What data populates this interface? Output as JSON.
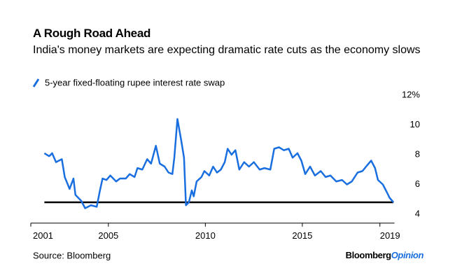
{
  "chart_data": {
    "type": "line",
    "title": "A Rough Road Ahead",
    "subtitle": "India's money markets are expecting dramatic rate cuts as the economy slows",
    "source": "Source: Bloomberg",
    "brand": "Bloomberg",
    "brand_suffix": "Opinion",
    "x": [
      2001.7,
      2001.95,
      2002.1,
      2002.3,
      2002.6,
      2002.75,
      2003.0,
      2003.2,
      2003.3,
      2003.6,
      2003.8,
      2004.1,
      2004.4,
      2004.55,
      2004.7,
      2004.9,
      2005.1,
      2005.4,
      2005.6,
      2005.9,
      2006.1,
      2006.35,
      2006.5,
      2006.75,
      2007.0,
      2007.2,
      2007.45,
      2007.65,
      2007.9,
      2008.1,
      2008.3,
      2008.4,
      2008.56,
      2008.75,
      2008.9,
      2009.0,
      2009.15,
      2009.3,
      2009.4,
      2009.55,
      2009.8,
      2009.95,
      2010.2,
      2010.4,
      2010.6,
      2010.8,
      2011.0,
      2011.15,
      2011.35,
      2011.55,
      2011.75,
      2012.0,
      2012.25,
      2012.5,
      2012.8,
      2013.05,
      2013.35,
      2013.55,
      2013.8,
      2014.05,
      2014.3,
      2014.5,
      2014.75,
      2014.95,
      2015.15,
      2015.4,
      2015.65,
      2015.95,
      2016.2,
      2016.45,
      2016.75,
      2017.05,
      2017.3,
      2017.55,
      2017.85,
      2018.1,
      2018.35,
      2018.55,
      2018.75,
      2018.9,
      2019.15,
      2019.35,
      2019.5,
      2019.7
    ],
    "series": [
      {
        "name": "5-year fixed-floating rupee interest rate swap",
        "color": "#1a6fe0",
        "values": [
          8.1,
          7.9,
          8.1,
          7.5,
          7.7,
          6.5,
          5.7,
          6.4,
          5.3,
          4.9,
          4.4,
          4.6,
          4.5,
          5.5,
          6.4,
          6.3,
          6.6,
          6.2,
          6.4,
          6.4,
          6.7,
          6.5,
          7.1,
          7.0,
          7.7,
          7.4,
          8.6,
          7.4,
          7.2,
          6.8,
          6.7,
          7.8,
          10.4,
          9.0,
          7.8,
          4.6,
          4.8,
          5.6,
          5.2,
          6.2,
          6.5,
          6.9,
          6.6,
          7.2,
          6.8,
          7.0,
          7.5,
          8.4,
          8.0,
          8.3,
          7.0,
          7.5,
          7.2,
          7.5,
          7.0,
          7.1,
          7.0,
          8.4,
          8.5,
          8.3,
          8.4,
          7.8,
          8.1,
          7.6,
          6.7,
          7.2,
          6.6,
          6.9,
          6.5,
          6.6,
          6.2,
          6.3,
          6.0,
          6.2,
          6.8,
          6.9,
          7.3,
          7.6,
          7.1,
          6.3,
          6.0,
          5.5,
          5.1,
          4.8
        ]
      }
    ],
    "reference_line": 4.8,
    "xlim": [
      2001,
      2019.75
    ],
    "xticks": [
      2001,
      2005,
      2010,
      2015,
      2019
    ],
    "ylim": [
      3.4,
      12
    ],
    "yticks": [
      4,
      6,
      8,
      10,
      {
        "value": 12,
        "label": "12%"
      }
    ],
    "grid": false
  }
}
